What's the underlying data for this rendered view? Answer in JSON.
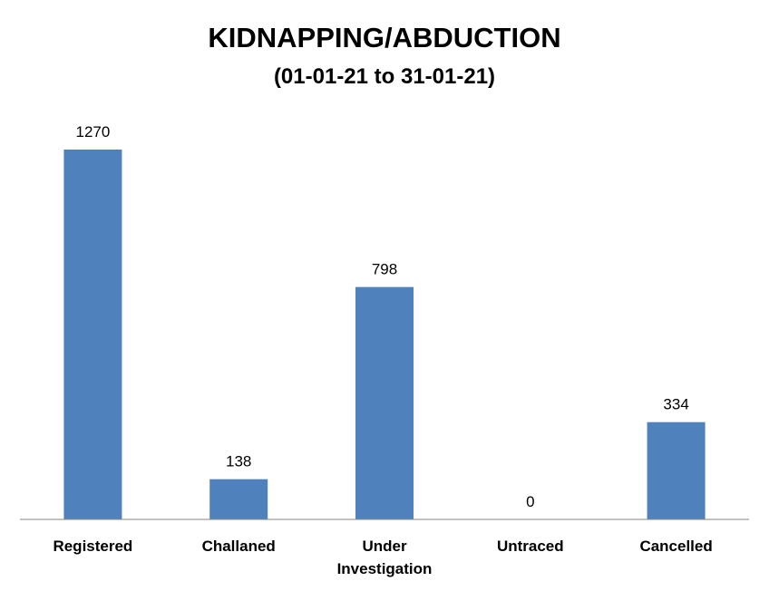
{
  "chart_data": {
    "type": "bar",
    "title": "KIDNAPPING/ABDUCTION",
    "subtitle": "(01-01-21 to 31-01-21)",
    "categories": [
      [
        "Registered"
      ],
      [
        "Challaned"
      ],
      [
        "Under",
        "Investigation"
      ],
      [
        "Untraced"
      ],
      [
        "Cancelled"
      ]
    ],
    "values": [
      1270,
      138,
      798,
      0,
      334
    ],
    "data_labels": [
      "1270",
      "138",
      "798",
      "0",
      "334"
    ],
    "ylim": [
      0,
      1270
    ],
    "grid": false,
    "legend": "none",
    "bar_color": "#4F81BD"
  }
}
